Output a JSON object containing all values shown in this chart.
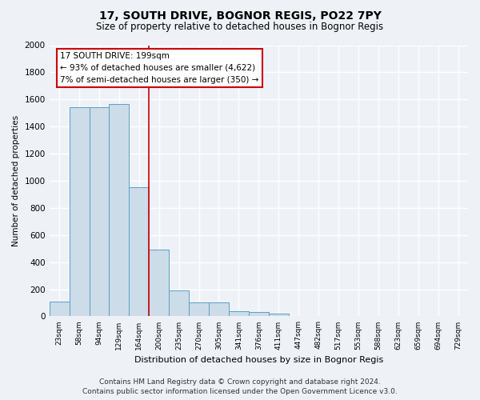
{
  "title": "17, SOUTH DRIVE, BOGNOR REGIS, PO22 7PY",
  "subtitle": "Size of property relative to detached houses in Bognor Regis",
  "xlabel": "Distribution of detached houses by size in Bognor Regis",
  "ylabel": "Number of detached properties",
  "bar_color": "#ccdce8",
  "bar_edge_color": "#5b9ec9",
  "categories": [
    "23sqm",
    "58sqm",
    "94sqm",
    "129sqm",
    "164sqm",
    "200sqm",
    "235sqm",
    "270sqm",
    "305sqm",
    "341sqm",
    "376sqm",
    "411sqm",
    "447sqm",
    "482sqm",
    "517sqm",
    "553sqm",
    "588sqm",
    "623sqm",
    "659sqm",
    "694sqm",
    "729sqm"
  ],
  "values": [
    110,
    1540,
    1540,
    1565,
    950,
    490,
    190,
    100,
    100,
    40,
    30,
    20,
    0,
    0,
    0,
    0,
    0,
    0,
    0,
    0,
    0
  ],
  "ylim": [
    0,
    2000
  ],
  "yticks": [
    0,
    200,
    400,
    600,
    800,
    1000,
    1200,
    1400,
    1600,
    1800,
    2000
  ],
  "red_line_index": 5,
  "annotation_text": "17 SOUTH DRIVE: 199sqm\n← 93% of detached houses are smaller (4,622)\n7% of semi-detached houses are larger (350) →",
  "annotation_box_color": "#ffffff",
  "annotation_box_edge": "#cc0000",
  "footer": "Contains HM Land Registry data © Crown copyright and database right 2024.\nContains public sector information licensed under the Open Government Licence v3.0.",
  "bg_color": "#eef2f7",
  "plot_bg_color": "#eef2f7",
  "grid_color": "#ffffff"
}
